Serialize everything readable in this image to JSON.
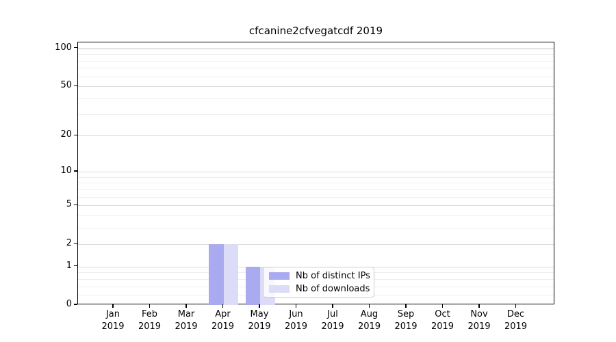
{
  "chart_data": {
    "type": "bar",
    "title": "cfcanine2cfvegatcdf 2019",
    "categories": [
      "Jan 2019",
      "Feb 2019",
      "Mar 2019",
      "Apr 2019",
      "May 2019",
      "Jun 2019",
      "Jul 2019",
      "Aug 2019",
      "Sep 2019",
      "Oct 2019",
      "Nov 2019",
      "Dec 2019"
    ],
    "series": [
      {
        "name": "Nb of distinct IPs",
        "color": "#aaaaf0",
        "values": [
          0,
          0,
          0,
          2,
          1,
          0,
          0,
          0,
          0,
          0,
          0,
          0
        ]
      },
      {
        "name": "Nb of downloads",
        "color": "#dcdcf8",
        "values": [
          0,
          0,
          0,
          2,
          1,
          0,
          0,
          0,
          0,
          0,
          0,
          0
        ]
      }
    ],
    "yscale": "log1p",
    "ylim": [
      0,
      100
    ],
    "yticks": [
      0,
      1,
      2,
      5,
      10,
      20,
      50,
      100
    ],
    "minor_yticks": [
      0.2,
      0.4,
      0.6,
      0.8,
      3,
      4,
      6,
      7,
      8,
      9,
      30,
      40,
      60,
      70,
      80,
      90
    ],
    "grid": "horizontal",
    "legend_position": "lower center"
  },
  "colors": {
    "grid_top": "#bdbdbd",
    "grid_major": "#dbdbdb",
    "grid_minor": "#eeeeee",
    "axis": "#000000",
    "legend_border": "#cccccc"
  }
}
